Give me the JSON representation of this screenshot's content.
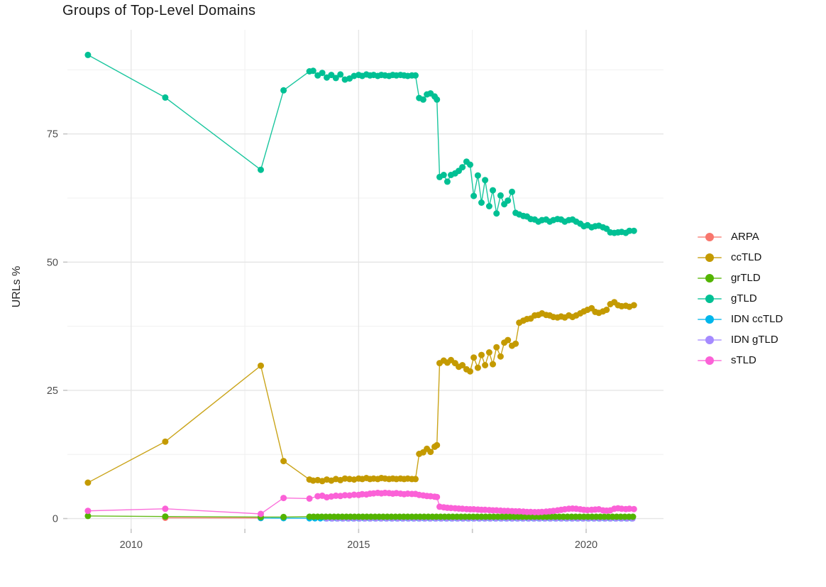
{
  "chart": {
    "title": "Groups of Top-Level Domains",
    "ylabel": "URLs %"
  },
  "legend": {
    "entries": [
      {
        "label": "ARPA",
        "color": "#F8766D"
      },
      {
        "label": "ccTLD",
        "color": "#C49A00"
      },
      {
        "label": "grTLD",
        "color": "#53B400"
      },
      {
        "label": "gTLD",
        "color": "#00C094"
      },
      {
        "label": "IDN ccTLD",
        "color": "#00B6EB"
      },
      {
        "label": "IDN gTLD",
        "color": "#A58AFF"
      },
      {
        "label": "sTLD",
        "color": "#FB61D7"
      }
    ]
  },
  "chart_data": {
    "type": "scatter",
    "title": "Groups of Top-Level Domains",
    "xlabel": "",
    "ylabel": "URLs %",
    "xlim": [
      2008.6,
      2021.7
    ],
    "ylim": [
      -2,
      95.3
    ],
    "x_tick_values": [
      2010,
      2015,
      2020
    ],
    "x_tick_labels": [
      "2010",
      "2015",
      "2020"
    ],
    "x_minor_values": [
      2012.5,
      2017.5
    ],
    "y_tick_values": [
      0,
      25,
      50,
      75
    ],
    "y_tick_labels": [
      "0",
      "25",
      "50",
      "75"
    ],
    "y_minor_values": [
      12.5,
      37.5,
      62.5,
      87.5
    ],
    "grid": true,
    "legend_position": "right",
    "series": [
      {
        "name": "ARPA",
        "color": "#F8766D",
        "points": [
          [
            2010.75,
            0.15
          ],
          [
            2012.85,
            0.1
          ]
        ]
      },
      {
        "name": "IDN ccTLD",
        "color": "#00B6EB",
        "points": [
          [
            2012.85,
            0.1
          ],
          [
            2013.35,
            0.08
          ]
        ],
        "span": {
          "from": 2013.92,
          "to": 2021.04,
          "step": 0.12,
          "y": 0.05
        }
      },
      {
        "name": "IDN gTLD",
        "color": "#A58AFF",
        "points": [],
        "span": {
          "from": 2014.3,
          "to": 2021.06,
          "step": 0.12,
          "y": 0.02
        }
      },
      {
        "name": "grTLD",
        "color": "#53B400",
        "points": [
          [
            2009.05,
            0.5
          ],
          [
            2010.75,
            0.4
          ],
          [
            2012.85,
            0.3
          ],
          [
            2013.35,
            0.3
          ]
        ],
        "span": {
          "from": 2013.92,
          "to": 2021.05,
          "step": 0.09,
          "y": 0.35
        }
      },
      {
        "name": "ccTLD",
        "color": "#C49A00",
        "points": [
          [
            2009.05,
            7.0
          ],
          [
            2010.75,
            15.0
          ],
          [
            2012.85,
            29.8
          ],
          [
            2013.35,
            11.2
          ],
          [
            2013.92,
            7.6
          ],
          [
            2014.0,
            7.4
          ],
          [
            2014.1,
            7.5
          ],
          [
            2014.2,
            7.3
          ],
          [
            2014.3,
            7.6
          ],
          [
            2014.4,
            7.4
          ],
          [
            2014.5,
            7.7
          ],
          [
            2014.6,
            7.5
          ],
          [
            2014.7,
            7.8
          ],
          [
            2014.8,
            7.7
          ],
          [
            2014.9,
            7.6
          ],
          [
            2015.0,
            7.8
          ],
          [
            2015.08,
            7.7
          ],
          [
            2015.17,
            7.9
          ],
          [
            2015.25,
            7.7
          ],
          [
            2015.33,
            7.8
          ],
          [
            2015.42,
            7.7
          ],
          [
            2015.5,
            7.9
          ],
          [
            2015.58,
            7.8
          ],
          [
            2015.67,
            7.7
          ],
          [
            2015.75,
            7.8
          ],
          [
            2015.83,
            7.7
          ],
          [
            2015.92,
            7.8
          ],
          [
            2016.0,
            7.7
          ],
          [
            2016.08,
            7.8
          ],
          [
            2016.17,
            7.7
          ],
          [
            2016.25,
            7.7
          ],
          [
            2016.33,
            12.6
          ],
          [
            2016.42,
            12.9
          ],
          [
            2016.5,
            13.6
          ],
          [
            2016.58,
            13.0
          ],
          [
            2016.67,
            14.0
          ],
          [
            2016.72,
            14.3
          ],
          [
            2016.78,
            30.3
          ],
          [
            2016.87,
            30.8
          ],
          [
            2016.95,
            30.4
          ],
          [
            2017.03,
            30.9
          ],
          [
            2017.12,
            30.3
          ],
          [
            2017.2,
            29.6
          ],
          [
            2017.28,
            29.9
          ],
          [
            2017.37,
            29.1
          ],
          [
            2017.45,
            28.7
          ],
          [
            2017.53,
            31.4
          ],
          [
            2017.62,
            29.4
          ],
          [
            2017.7,
            31.9
          ],
          [
            2017.78,
            29.9
          ],
          [
            2017.87,
            32.4
          ],
          [
            2017.95,
            30.1
          ],
          [
            2018.03,
            33.4
          ],
          [
            2018.12,
            31.6
          ],
          [
            2018.2,
            34.3
          ],
          [
            2018.28,
            34.8
          ],
          [
            2018.37,
            33.7
          ],
          [
            2018.45,
            34.1
          ],
          [
            2018.53,
            38.2
          ],
          [
            2018.62,
            38.6
          ],
          [
            2018.7,
            38.9
          ],
          [
            2018.78,
            39.0
          ],
          [
            2018.87,
            39.6
          ],
          [
            2018.95,
            39.7
          ],
          [
            2019.03,
            40.0
          ],
          [
            2019.12,
            39.7
          ],
          [
            2019.2,
            39.6
          ],
          [
            2019.28,
            39.3
          ],
          [
            2019.37,
            39.2
          ],
          [
            2019.45,
            39.4
          ],
          [
            2019.53,
            39.2
          ],
          [
            2019.62,
            39.6
          ],
          [
            2019.7,
            39.3
          ],
          [
            2019.78,
            39.6
          ],
          [
            2019.87,
            40.0
          ],
          [
            2019.95,
            40.4
          ],
          [
            2020.03,
            40.7
          ],
          [
            2020.12,
            41.0
          ],
          [
            2020.2,
            40.3
          ],
          [
            2020.28,
            40.1
          ],
          [
            2020.37,
            40.4
          ],
          [
            2020.45,
            40.7
          ],
          [
            2020.53,
            41.8
          ],
          [
            2020.62,
            42.2
          ],
          [
            2020.7,
            41.6
          ],
          [
            2020.78,
            41.4
          ],
          [
            2020.87,
            41.5
          ],
          [
            2020.95,
            41.3
          ],
          [
            2021.05,
            41.6
          ]
        ]
      },
      {
        "name": "gTLD",
        "color": "#00C094",
        "points": [
          [
            2009.05,
            90.4
          ],
          [
            2010.75,
            82.1
          ],
          [
            2012.85,
            68.0
          ],
          [
            2013.35,
            83.5
          ],
          [
            2013.92,
            87.2
          ],
          [
            2014.0,
            87.3
          ],
          [
            2014.1,
            86.4
          ],
          [
            2014.2,
            86.9
          ],
          [
            2014.3,
            86.0
          ],
          [
            2014.4,
            86.5
          ],
          [
            2014.5,
            85.9
          ],
          [
            2014.6,
            86.6
          ],
          [
            2014.7,
            85.6
          ],
          [
            2014.8,
            85.8
          ],
          [
            2014.9,
            86.3
          ],
          [
            2015.0,
            86.5
          ],
          [
            2015.08,
            86.3
          ],
          [
            2015.17,
            86.6
          ],
          [
            2015.25,
            86.4
          ],
          [
            2015.33,
            86.5
          ],
          [
            2015.42,
            86.3
          ],
          [
            2015.5,
            86.5
          ],
          [
            2015.58,
            86.4
          ],
          [
            2015.67,
            86.3
          ],
          [
            2015.75,
            86.5
          ],
          [
            2015.83,
            86.4
          ],
          [
            2015.92,
            86.5
          ],
          [
            2016.0,
            86.4
          ],
          [
            2016.08,
            86.3
          ],
          [
            2016.17,
            86.4
          ],
          [
            2016.25,
            86.4
          ],
          [
            2016.33,
            82.0
          ],
          [
            2016.42,
            81.7
          ],
          [
            2016.5,
            82.7
          ],
          [
            2016.58,
            82.9
          ],
          [
            2016.67,
            82.3
          ],
          [
            2016.72,
            81.7
          ],
          [
            2016.78,
            66.6
          ],
          [
            2016.87,
            67.0
          ],
          [
            2016.95,
            65.7
          ],
          [
            2017.03,
            67.0
          ],
          [
            2017.12,
            67.3
          ],
          [
            2017.2,
            67.8
          ],
          [
            2017.28,
            68.5
          ],
          [
            2017.37,
            69.6
          ],
          [
            2017.45,
            69.0
          ],
          [
            2017.53,
            62.9
          ],
          [
            2017.62,
            66.9
          ],
          [
            2017.7,
            61.6
          ],
          [
            2017.78,
            66.0
          ],
          [
            2017.87,
            60.9
          ],
          [
            2017.95,
            64.0
          ],
          [
            2018.03,
            59.5
          ],
          [
            2018.12,
            63.0
          ],
          [
            2018.2,
            61.3
          ],
          [
            2018.28,
            62.0
          ],
          [
            2018.37,
            63.7
          ],
          [
            2018.45,
            59.6
          ],
          [
            2018.53,
            59.3
          ],
          [
            2018.62,
            59.0
          ],
          [
            2018.7,
            58.9
          ],
          [
            2018.78,
            58.4
          ],
          [
            2018.87,
            58.3
          ],
          [
            2018.95,
            57.9
          ],
          [
            2019.03,
            58.2
          ],
          [
            2019.12,
            58.3
          ],
          [
            2019.2,
            57.9
          ],
          [
            2019.28,
            58.2
          ],
          [
            2019.37,
            58.4
          ],
          [
            2019.45,
            58.3
          ],
          [
            2019.53,
            57.9
          ],
          [
            2019.62,
            58.2
          ],
          [
            2019.7,
            58.3
          ],
          [
            2019.78,
            57.9
          ],
          [
            2019.87,
            57.5
          ],
          [
            2019.95,
            57.0
          ],
          [
            2020.03,
            57.2
          ],
          [
            2020.12,
            56.8
          ],
          [
            2020.2,
            57.0
          ],
          [
            2020.28,
            57.1
          ],
          [
            2020.37,
            56.8
          ],
          [
            2020.45,
            56.5
          ],
          [
            2020.53,
            55.8
          ],
          [
            2020.62,
            55.7
          ],
          [
            2020.7,
            55.8
          ],
          [
            2020.78,
            55.9
          ],
          [
            2020.87,
            55.7
          ],
          [
            2020.95,
            56.1
          ],
          [
            2021.05,
            56.1
          ]
        ]
      },
      {
        "name": "sTLD",
        "color": "#FB61D7",
        "points": [
          [
            2009.05,
            1.5
          ],
          [
            2010.75,
            1.9
          ],
          [
            2012.85,
            0.9
          ],
          [
            2013.35,
            4.0
          ],
          [
            2013.92,
            3.9
          ],
          [
            2014.1,
            4.35
          ],
          [
            2014.2,
            4.45
          ],
          [
            2014.3,
            4.15
          ],
          [
            2014.4,
            4.3
          ],
          [
            2014.5,
            4.45
          ],
          [
            2014.6,
            4.4
          ],
          [
            2014.7,
            4.55
          ],
          [
            2014.8,
            4.5
          ],
          [
            2014.9,
            4.65
          ],
          [
            2015.0,
            4.6
          ],
          [
            2015.08,
            4.75
          ],
          [
            2015.17,
            4.7
          ],
          [
            2015.25,
            4.85
          ],
          [
            2015.33,
            4.9
          ],
          [
            2015.42,
            5.0
          ],
          [
            2015.5,
            4.9
          ],
          [
            2015.58,
            5.0
          ],
          [
            2015.67,
            4.95
          ],
          [
            2015.75,
            4.85
          ],
          [
            2015.83,
            4.95
          ],
          [
            2015.92,
            4.85
          ],
          [
            2016.0,
            4.75
          ],
          [
            2016.08,
            4.85
          ],
          [
            2016.17,
            4.8
          ],
          [
            2016.25,
            4.8
          ],
          [
            2016.33,
            4.6
          ],
          [
            2016.42,
            4.5
          ],
          [
            2016.5,
            4.4
          ],
          [
            2016.58,
            4.35
          ],
          [
            2016.67,
            4.25
          ],
          [
            2016.72,
            4.2
          ],
          [
            2016.78,
            2.3
          ],
          [
            2016.87,
            2.2
          ],
          [
            2016.95,
            2.1
          ],
          [
            2017.03,
            2.05
          ],
          [
            2017.12,
            2.0
          ],
          [
            2017.2,
            1.95
          ],
          [
            2017.28,
            1.9
          ],
          [
            2017.37,
            1.85
          ],
          [
            2017.45,
            1.8
          ],
          [
            2017.53,
            1.8
          ],
          [
            2017.62,
            1.75
          ],
          [
            2017.7,
            1.7
          ],
          [
            2017.78,
            1.7
          ],
          [
            2017.87,
            1.65
          ],
          [
            2017.95,
            1.6
          ],
          [
            2018.03,
            1.6
          ],
          [
            2018.12,
            1.55
          ],
          [
            2018.2,
            1.5
          ],
          [
            2018.28,
            1.5
          ],
          [
            2018.37,
            1.45
          ],
          [
            2018.45,
            1.4
          ],
          [
            2018.53,
            1.4
          ],
          [
            2018.62,
            1.35
          ],
          [
            2018.7,
            1.3
          ],
          [
            2018.78,
            1.3
          ],
          [
            2018.87,
            1.25
          ],
          [
            2018.95,
            1.25
          ],
          [
            2019.03,
            1.3
          ],
          [
            2019.12,
            1.35
          ],
          [
            2019.2,
            1.4
          ],
          [
            2019.28,
            1.5
          ],
          [
            2019.37,
            1.6
          ],
          [
            2019.45,
            1.7
          ],
          [
            2019.53,
            1.8
          ],
          [
            2019.62,
            1.9
          ],
          [
            2019.7,
            1.95
          ],
          [
            2019.78,
            1.9
          ],
          [
            2019.87,
            1.8
          ],
          [
            2019.95,
            1.7
          ],
          [
            2020.03,
            1.65
          ],
          [
            2020.12,
            1.7
          ],
          [
            2020.2,
            1.75
          ],
          [
            2020.28,
            1.8
          ],
          [
            2020.37,
            1.6
          ],
          [
            2020.45,
            1.55
          ],
          [
            2020.53,
            1.6
          ],
          [
            2020.62,
            1.9
          ],
          [
            2020.7,
            2.0
          ],
          [
            2020.78,
            1.9
          ],
          [
            2020.87,
            1.85
          ],
          [
            2020.95,
            1.9
          ],
          [
            2021.05,
            1.85
          ]
        ]
      }
    ]
  }
}
